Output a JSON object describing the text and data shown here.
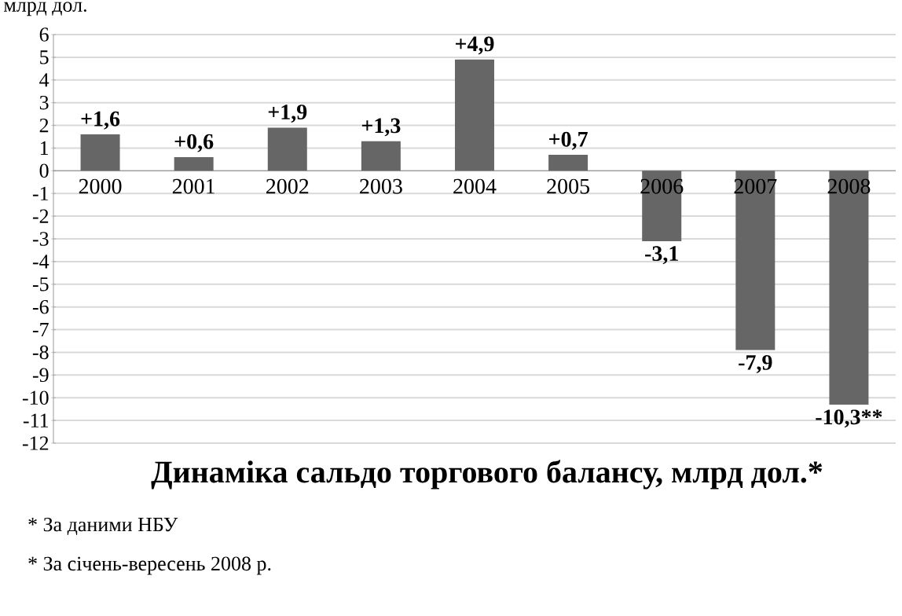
{
  "chart_data": {
    "type": "bar",
    "title": "Динаміка сальдо торгового балансу, млрд дол.*",
    "ylabel": "млрд дол.",
    "categories": [
      "2000",
      "2001",
      "2002",
      "2003",
      "2004",
      "2005",
      "2006",
      "2007",
      "2008"
    ],
    "values": [
      1.6,
      0.6,
      1.9,
      1.3,
      4.9,
      0.7,
      -3.1,
      -7.9,
      -10.3
    ],
    "value_labels": [
      "+1,6",
      "+0,6",
      "+1,9",
      "+1,3",
      "+4,9",
      "+0,7",
      "-3,1",
      "-7,9",
      "-10,3**"
    ],
    "color": "#666666",
    "ylim": [
      -12,
      6
    ],
    "yticks": [
      -12,
      -11,
      -10,
      -9,
      -8,
      -7,
      -6,
      -5,
      -4,
      -3,
      -2,
      -1,
      0,
      1,
      2,
      3,
      4,
      5,
      6
    ],
    "grid": "y",
    "annotations": [
      "* За даними НБУ",
      "* За січень-вересень 2008 р."
    ]
  }
}
